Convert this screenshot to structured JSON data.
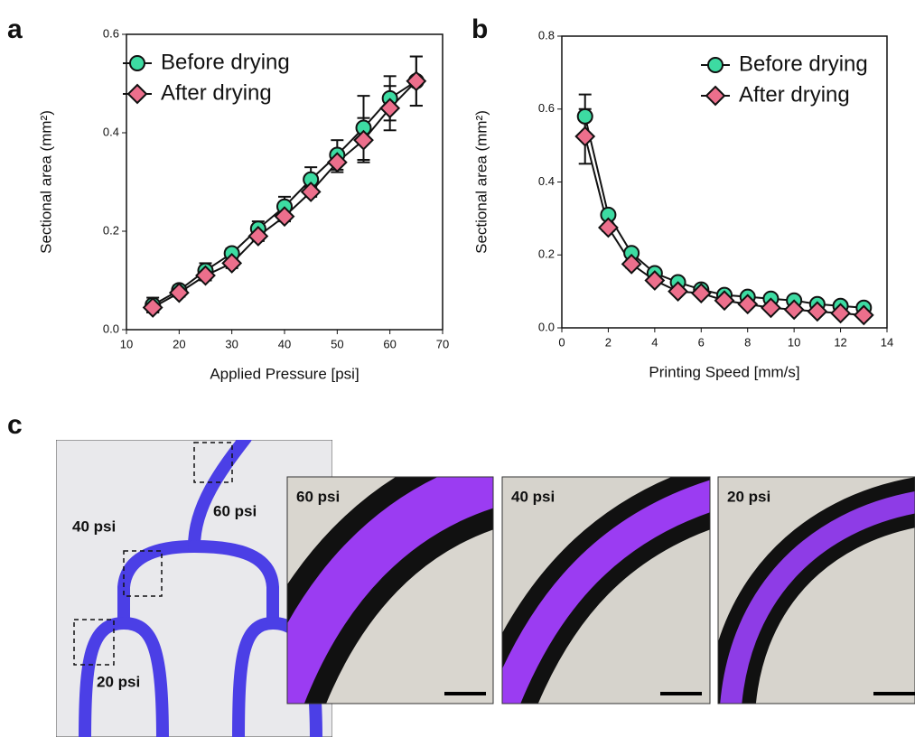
{
  "panel_labels": [
    "a",
    "b",
    "c"
  ],
  "chart_data": [
    {
      "type": "line",
      "x_label": "Applied Pressure [psi]",
      "y_label": "Sectional area (mm²)",
      "x": [
        15,
        20,
        25,
        30,
        35,
        40,
        45,
        50,
        55,
        60,
        65
      ],
      "xlim": [
        10,
        70
      ],
      "xticks": [
        10,
        20,
        30,
        40,
        50,
        60,
        70
      ],
      "ylim": [
        0,
        0.6
      ],
      "yticks": [
        {
          "value": 0,
          "label": "0.0"
        },
        0.2,
        0.4,
        0.6
      ],
      "legend": "upper left",
      "series": [
        {
          "name": "Before drying",
          "color": "#3ddba2",
          "marker": "circle",
          "values": [
            0.05,
            0.08,
            0.12,
            0.155,
            0.205,
            0.25,
            0.305,
            0.355,
            0.41,
            0.47,
            0.505
          ],
          "errors": [
            0.015,
            0.01,
            0.015,
            0.01,
            0.015,
            0.02,
            0.025,
            0.03,
            0.065,
            0.045,
            0.05
          ]
        },
        {
          "name": "After drying",
          "color": "#ec6f8c",
          "marker": "diamond",
          "values": [
            0.045,
            0.075,
            0.11,
            0.135,
            0.19,
            0.23,
            0.28,
            0.34,
            0.385,
            0.45,
            0.505
          ],
          "errors": [
            0.01,
            0.008,
            0.01,
            0.01,
            0.01,
            0.01,
            0.01,
            0.02,
            0.045,
            0.045,
            0.05
          ]
        }
      ]
    },
    {
      "type": "line",
      "x_label": "Printing Speed [mm/s]",
      "y_label": "Sectional area (mm²)",
      "x": [
        1,
        2,
        3,
        4,
        5,
        6,
        7,
        8,
        9,
        10,
        11,
        12,
        13
      ],
      "xlim": [
        0,
        14
      ],
      "xticks": [
        0,
        2,
        4,
        6,
        8,
        10,
        12,
        14
      ],
      "ylim": [
        0,
        0.8
      ],
      "yticks": [
        {
          "value": 0,
          "label": "0.0"
        },
        0.2,
        0.4,
        0.6,
        0.8
      ],
      "legend": "upper right",
      "series": [
        {
          "name": "Before drying",
          "color": "#3ddba2",
          "marker": "circle",
          "values": [
            0.58,
            0.31,
            0.205,
            0.15,
            0.125,
            0.105,
            0.09,
            0.085,
            0.08,
            0.075,
            0.065,
            0.06,
            0.055
          ],
          "errors": [
            0.06,
            0.01,
            0.01,
            0.008,
            0.008,
            0.005,
            0.005,
            0.005,
            0.005,
            0.005,
            0.005,
            0.005,
            0.005
          ]
        },
        {
          "name": "After drying",
          "color": "#ec6f8c",
          "marker": "diamond",
          "values": [
            0.525,
            0.275,
            0.175,
            0.13,
            0.1,
            0.095,
            0.075,
            0.065,
            0.055,
            0.05,
            0.045,
            0.04,
            0.035
          ],
          "errors": [
            0.075,
            0.01,
            0.01,
            0.008,
            0.008,
            0.005,
            0.005,
            0.005,
            0.005,
            0.005,
            0.005,
            0.005,
            0.005
          ]
        }
      ]
    }
  ],
  "photo": {
    "labels": [
      "40 psi",
      "60 psi",
      "20 psi"
    ]
  },
  "insets": [
    {
      "label": "60 psi"
    },
    {
      "label": "40 psi"
    },
    {
      "label": "20 psi"
    }
  ]
}
